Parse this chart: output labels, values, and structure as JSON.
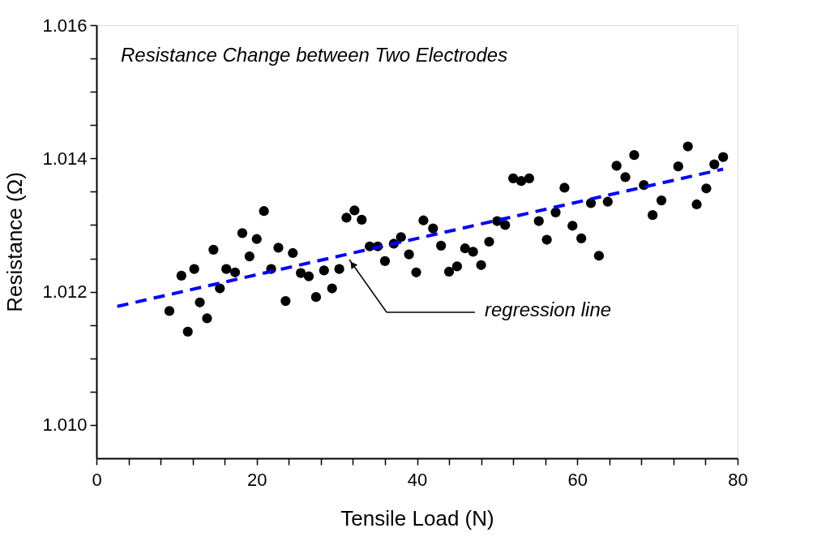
{
  "chart_data": {
    "type": "scatter",
    "title": "Resistance Change between Two Electrodes",
    "xlabel": "Tensile Load (N)",
    "ylabel": "Resistance (Ω)",
    "xlim": [
      0,
      80
    ],
    "xticks": [
      0,
      {
        "value": 4,
        "label": null
      },
      {
        "value": 8,
        "label": null
      },
      {
        "value": 12,
        "label": null
      },
      {
        "value": 16,
        "label": null
      },
      20,
      {
        "value": 24,
        "label": null
      },
      {
        "value": 28,
        "label": null
      },
      {
        "value": 32,
        "label": null
      },
      {
        "value": 36,
        "label": null
      },
      40,
      {
        "value": 44,
        "label": null
      },
      {
        "value": 48,
        "label": null
      },
      {
        "value": 52,
        "label": null
      },
      {
        "value": 56,
        "label": null
      },
      60,
      {
        "value": 64,
        "label": null
      },
      {
        "value": 68,
        "label": null
      },
      {
        "value": 72,
        "label": null
      },
      {
        "value": 76,
        "label": null
      },
      80
    ],
    "ylim": [
      1.0095,
      1.016
    ],
    "yticks": [
      {
        "value": 1.01,
        "label": "1.010"
      },
      {
        "value": 1.0105,
        "label": null
      },
      {
        "value": 1.011,
        "label": null
      },
      {
        "value": 1.0115,
        "label": null
      },
      {
        "value": 1.012,
        "label": "1.012"
      },
      {
        "value": 1.0125,
        "label": null
      },
      {
        "value": 1.013,
        "label": null
      },
      {
        "value": 1.0135,
        "label": null
      },
      {
        "value": 1.014,
        "label": "1.014"
      },
      {
        "value": 1.0145,
        "label": null
      },
      {
        "value": 1.015,
        "label": null
      },
      {
        "value": 1.0155,
        "label": null
      },
      {
        "value": 1.016,
        "label": "1.016"
      }
    ],
    "grid": false,
    "series": [
      {
        "type": "scatter",
        "marker": "circle",
        "color": "#000000",
        "x": [
          9.1,
          10.6,
          11.4,
          12.2,
          12.9,
          13.8,
          14.6,
          15.4,
          16.2,
          17.3,
          18.2,
          19.1,
          20.0,
          20.9,
          21.8,
          22.7,
          23.6,
          24.5,
          25.5,
          26.5,
          27.4,
          28.4,
          29.4,
          30.3,
          31.2,
          32.2,
          33.1,
          34.1,
          35.1,
          36.0,
          37.1,
          38.0,
          39.0,
          39.9,
          40.8,
          42.0,
          43.0,
          44.0,
          45.0,
          46.0,
          47.0,
          48.0,
          49.0,
          50.0,
          51.0,
          52.0,
          53.0,
          54.0,
          55.2,
          56.2,
          57.3,
          58.4,
          59.4,
          60.5,
          61.7,
          62.7,
          63.8,
          64.9,
          66.0,
          67.1,
          68.3,
          69.4,
          70.5,
          72.6,
          73.8,
          74.9,
          76.1,
          77.1,
          78.2
        ],
        "values": [
          1.01171,
          1.01224,
          1.0114,
          1.01234,
          1.01184,
          1.0116,
          1.01263,
          1.01205,
          1.01234,
          1.01229,
          1.01288,
          1.01253,
          1.01279,
          1.01321,
          1.01234,
          1.01266,
          1.01186,
          1.01258,
          1.01228,
          1.01223,
          1.01192,
          1.01232,
          1.01205,
          1.01234,
          1.01311,
          1.01322,
          1.01308,
          1.01268,
          1.01268,
          1.01246,
          1.01272,
          1.01282,
          1.01256,
          1.01229,
          1.01307,
          1.01295,
          1.01269,
          1.0123,
          1.01238,
          1.01265,
          1.0126,
          1.0124,
          1.01275,
          1.01306,
          1.013,
          1.0137,
          1.01366,
          1.0137,
          1.01306,
          1.01278,
          1.01319,
          1.01356,
          1.01299,
          1.0128,
          1.01333,
          1.01254,
          1.01335,
          1.01389,
          1.01372,
          1.01405,
          1.0136,
          1.01315,
          1.01337,
          1.01388,
          1.01418,
          1.01331,
          1.01355,
          1.01391,
          1.01402
        ]
      },
      {
        "type": "line",
        "marker": "none",
        "color": "#0000ff",
        "line_style": "dashed",
        "x": [
          2.6,
          78.2
        ],
        "values": [
          1.01178,
          1.01384
        ]
      }
    ],
    "annotations": [
      "regression line"
    ]
  }
}
